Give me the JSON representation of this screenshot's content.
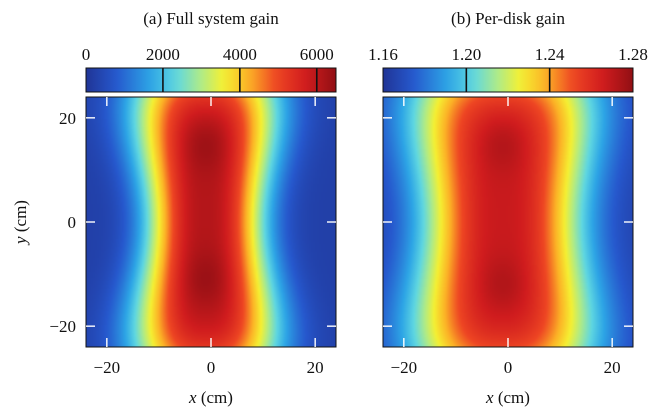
{
  "chart_data": [
    {
      "type": "heatmap",
      "title": "(a) Full system gain",
      "xlabel_var": "x",
      "xlabel_unit": " (cm)",
      "ylabel_var": "y",
      "ylabel_unit": " (cm)",
      "xlim": [
        -24,
        24
      ],
      "ylim": [
        -24,
        24
      ],
      "x_ticks": [
        -20,
        0,
        20
      ],
      "x_tick_labels": [
        "−20",
        "0",
        "20"
      ],
      "y_ticks": [
        -20,
        0,
        20
      ],
      "y_tick_labels": [
        "−20",
        "0",
        "20"
      ],
      "colorbar": {
        "min": 0,
        "max": 6500,
        "ticks": [
          0,
          2000,
          4000,
          6000
        ],
        "tick_labels": [
          "0",
          "2000",
          "4000",
          "6000"
        ],
        "contour_levels": [
          2000,
          4000,
          6000
        ]
      },
      "field": {
        "peak_value": 6500,
        "half_width_cm": 12.6,
        "waist_cm": 1.4,
        "lobe_centers_y_cm": [
          15,
          -11
        ],
        "center_x_cm": -1,
        "edge_value": 250
      }
    },
    {
      "type": "heatmap",
      "title": "(b) Per-disk gain",
      "xlabel_var": "x",
      "xlabel_unit": " (cm)",
      "xlim": [
        -24,
        24
      ],
      "ylim": [
        -24,
        24
      ],
      "x_ticks": [
        -20,
        0,
        20
      ],
      "x_tick_labels": [
        "−20",
        "0",
        "20"
      ],
      "y_ticks": [
        -20,
        0,
        20
      ],
      "colorbar": {
        "min": 1.16,
        "max": 1.28,
        "ticks": [
          1.16,
          1.2,
          1.24,
          1.28
        ],
        "tick_labels": [
          "1.16",
          "1.20",
          "1.24",
          "1.28"
        ],
        "contour_levels": [
          1.2,
          1.24
        ]
      },
      "field": {
        "peak_value": 1.275,
        "half_width_cm": 16.5,
        "waist_cm": 1.2,
        "lobe_centers_y_cm": [
          15,
          -12
        ],
        "center_x_cm": -1,
        "edge_value": 1.165
      }
    }
  ]
}
